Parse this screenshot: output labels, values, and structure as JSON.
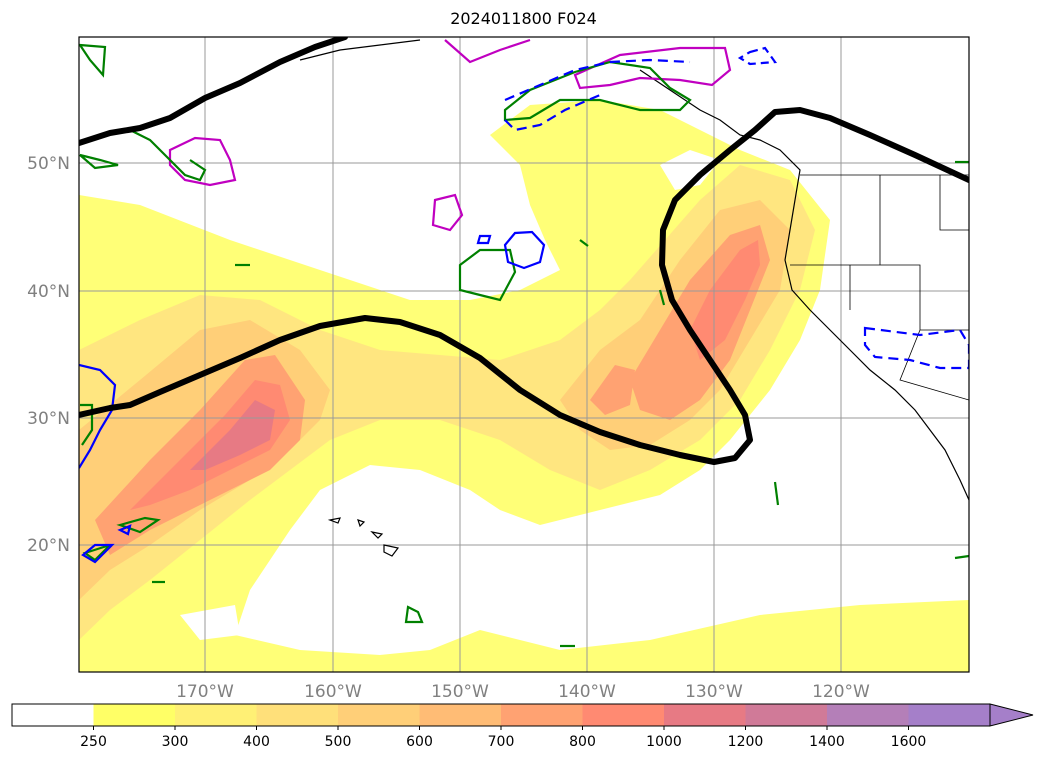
{
  "title": "2024011800 F024",
  "lat_labels": [
    "20°N",
    "30°N",
    "40°N",
    "50°N"
  ],
  "lon_labels": [
    "170°W",
    "160°W",
    "150°W",
    "140°W",
    "130°W",
    "120°W"
  ],
  "colorbar": {
    "ticks": [
      "250",
      "300",
      "400",
      "500",
      "600",
      "700",
      "800",
      "1000",
      "1200",
      "1400",
      "1600"
    ],
    "colors": [
      "#ffffff",
      "#ffff66",
      "#fff075",
      "#ffe07a",
      "#ffcf78",
      "#ffbc75",
      "#ffa272",
      "#ff8a72",
      "#e77a84",
      "#d07a98",
      "#b47fb8",
      "#a57fc9"
    ],
    "extend": "max"
  },
  "contour_colors": {
    "jet_axis": "#000000",
    "green_contours": "#008000",
    "blue_contours": "#0000ff",
    "magenta_contours": "#c000c0"
  },
  "gridlines": true
}
